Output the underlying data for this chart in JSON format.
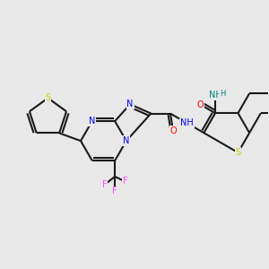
{
  "background_color": "#e8e8e8",
  "bond_color": "#1a1a1a",
  "bond_width": 1.5,
  "atom_colors": {
    "S": "#cccc00",
    "N": "#0000ff",
    "N_teal": "#008080",
    "O": "#ff0000",
    "F": "#ff44ff",
    "H": "#008080"
  },
  "font_size": 7.0
}
